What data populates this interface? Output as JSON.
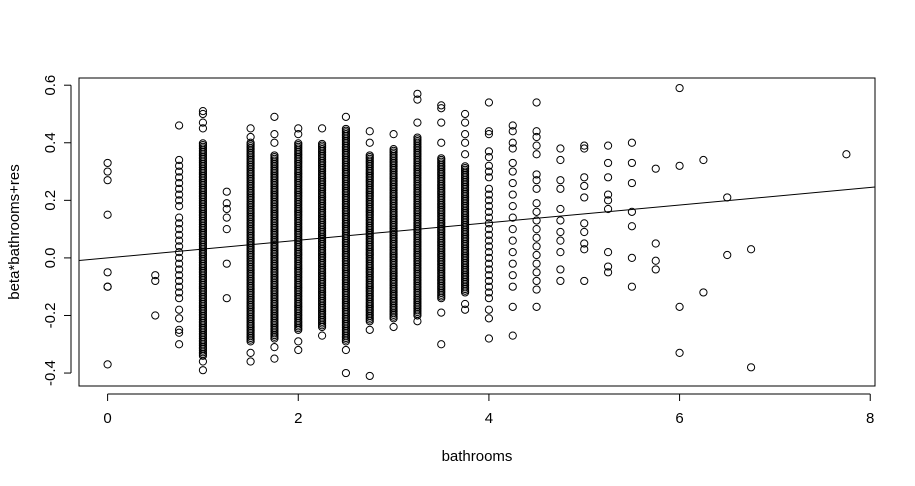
{
  "chart_data": {
    "type": "scatter",
    "title": "",
    "xlabel": "bathrooms",
    "ylabel": "beta*bathrooms+res",
    "xlim": [
      -0.3,
      8.05
    ],
    "ylim": [
      -0.445,
      0.625
    ],
    "xticks": [
      "0",
      "2",
      "4",
      "6",
      "8"
    ],
    "yticks": [
      "-0.4",
      "-0.2",
      "0.0",
      "0.2",
      "0.4",
      "0.6"
    ],
    "grid": false,
    "legend": "none",
    "fit_line": {
      "slope": 0.0306,
      "intercept": 0.0
    },
    "marker": "open-circle",
    "dense_columns": [
      {
        "x": 1.0,
        "ymin": -0.34,
        "ymax": 0.4
      },
      {
        "x": 1.5,
        "ymin": -0.29,
        "ymax": 0.4
      },
      {
        "x": 1.75,
        "ymin": -0.28,
        "ymax": 0.36
      },
      {
        "x": 2.0,
        "ymin": -0.25,
        "ymax": 0.4
      },
      {
        "x": 2.25,
        "ymin": -0.24,
        "ymax": 0.4
      },
      {
        "x": 2.5,
        "ymin": -0.29,
        "ymax": 0.45
      },
      {
        "x": 2.75,
        "ymin": -0.22,
        "ymax": 0.36
      },
      {
        "x": 3.0,
        "ymin": -0.21,
        "ymax": 0.38
      },
      {
        "x": 3.25,
        "ymin": -0.2,
        "ymax": 0.42
      },
      {
        "x": 3.5,
        "ymin": -0.14,
        "ymax": 0.35
      },
      {
        "x": 3.75,
        "ymin": -0.12,
        "ymax": 0.32
      }
    ],
    "dense_column_spread": [
      {
        "x": 0.75,
        "ys": [
          0.46,
          0.34,
          0.32,
          0.3,
          0.28,
          0.26,
          0.24,
          0.22,
          0.2,
          0.18,
          0.14,
          0.12,
          0.1,
          0.08,
          0.06,
          0.04,
          0.02,
          0.0,
          -0.02,
          -0.04,
          -0.06,
          -0.08,
          -0.1,
          -0.12,
          -0.14,
          -0.18,
          -0.21,
          -0.25,
          -0.26,
          -0.3
        ]
      },
      {
        "x": 1.25,
        "ys": [
          0.23,
          0.19,
          0.17,
          0.14,
          0.1,
          -0.02,
          -0.14
        ]
      },
      {
        "x": 4.0,
        "ys": [
          0.54,
          0.44,
          0.43,
          0.37,
          0.35,
          0.32,
          0.3,
          0.28,
          0.24,
          0.22,
          0.2,
          0.18,
          0.16,
          0.14,
          0.12,
          0.1,
          0.08,
          0.06,
          0.04,
          0.02,
          0.0,
          -0.02,
          -0.04,
          -0.06,
          -0.08,
          -0.1,
          -0.12,
          -0.14,
          -0.18,
          -0.21,
          -0.28
        ]
      },
      {
        "x": 4.25,
        "ys": [
          0.46,
          0.44,
          0.4,
          0.38,
          0.33,
          0.3,
          0.26,
          0.22,
          0.18,
          0.14,
          0.1,
          0.06,
          0.02,
          -0.02,
          -0.06,
          -0.1,
          -0.17,
          -0.27
        ]
      },
      {
        "x": 4.5,
        "ys": [
          0.54,
          0.44,
          0.42,
          0.39,
          0.36,
          0.29,
          0.27,
          0.24,
          0.19,
          0.16,
          0.13,
          0.1,
          0.07,
          0.04,
          0.01,
          -0.02,
          -0.05,
          -0.08,
          -0.11,
          -0.17
        ]
      },
      {
        "x": 4.75,
        "ys": [
          0.38,
          0.34,
          0.27,
          0.24,
          0.17,
          0.13,
          0.09,
          0.06,
          0.02,
          -0.04,
          -0.08
        ]
      },
      {
        "x": 5.0,
        "ys": [
          0.39,
          0.38,
          0.28,
          0.25,
          0.21,
          0.12,
          0.09,
          0.05,
          0.03,
          -0.08
        ]
      },
      {
        "x": 5.25,
        "ys": [
          0.39,
          0.33,
          0.28,
          0.22,
          0.2,
          0.17,
          0.02,
          -0.03,
          -0.05
        ]
      },
      {
        "x": 5.5,
        "ys": [
          0.4,
          0.33,
          0.26,
          0.16,
          0.11,
          0.0,
          -0.1
        ]
      },
      {
        "x": 5.75,
        "ys": [
          0.31,
          0.05,
          -0.01,
          -0.04
        ]
      }
    ],
    "points": [
      [
        0,
        0.33
      ],
      [
        0,
        0.3
      ],
      [
        0,
        0.27
      ],
      [
        0,
        0.15
      ],
      [
        0,
        -0.05
      ],
      [
        0,
        -0.1
      ],
      [
        0,
        -0.1
      ],
      [
        0,
        -0.37
      ],
      [
        0.5,
        -0.06
      ],
      [
        0.5,
        -0.08
      ],
      [
        0.5,
        -0.2
      ],
      [
        1.0,
        0.51
      ],
      [
        1.0,
        0.5
      ],
      [
        1.0,
        0.47
      ],
      [
        1.0,
        0.45
      ],
      [
        1.0,
        -0.36
      ],
      [
        1.0,
        -0.39
      ],
      [
        1.5,
        0.45
      ],
      [
        1.5,
        0.42
      ],
      [
        1.5,
        -0.33
      ],
      [
        1.5,
        -0.36
      ],
      [
        1.75,
        0.49
      ],
      [
        1.75,
        0.43
      ],
      [
        1.75,
        0.4
      ],
      [
        1.75,
        -0.31
      ],
      [
        1.75,
        -0.35
      ],
      [
        2.0,
        0.45
      ],
      [
        2.0,
        0.43
      ],
      [
        2.0,
        -0.29
      ],
      [
        2.0,
        -0.32
      ],
      [
        2.25,
        0.45
      ],
      [
        2.25,
        -0.27
      ],
      [
        2.5,
        0.49
      ],
      [
        2.5,
        -0.32
      ],
      [
        2.5,
        -0.4
      ],
      [
        2.75,
        0.44
      ],
      [
        2.75,
        0.4
      ],
      [
        2.75,
        -0.25
      ],
      [
        2.75,
        -0.41
      ],
      [
        3.0,
        0.43
      ],
      [
        3.0,
        -0.24
      ],
      [
        3.25,
        0.57
      ],
      [
        3.25,
        0.55
      ],
      [
        3.25,
        0.47
      ],
      [
        3.25,
        -0.22
      ],
      [
        3.5,
        0.53
      ],
      [
        3.5,
        0.52
      ],
      [
        3.5,
        0.47
      ],
      [
        3.5,
        0.4
      ],
      [
        3.5,
        -0.19
      ],
      [
        3.5,
        -0.3
      ],
      [
        3.75,
        0.5
      ],
      [
        3.75,
        0.47
      ],
      [
        3.75,
        0.43
      ],
      [
        3.75,
        0.4
      ],
      [
        3.75,
        0.36
      ],
      [
        3.75,
        -0.16
      ],
      [
        3.75,
        -0.18
      ],
      [
        6.0,
        0.59
      ],
      [
        6.0,
        0.32
      ],
      [
        6.0,
        -0.17
      ],
      [
        6.0,
        -0.33
      ],
      [
        6.25,
        0.34
      ],
      [
        6.25,
        -0.12
      ],
      [
        6.5,
        0.21
      ],
      [
        6.5,
        0.01
      ],
      [
        6.75,
        0.03
      ],
      [
        6.75,
        -0.38
      ],
      [
        7.75,
        0.36
      ]
    ]
  }
}
